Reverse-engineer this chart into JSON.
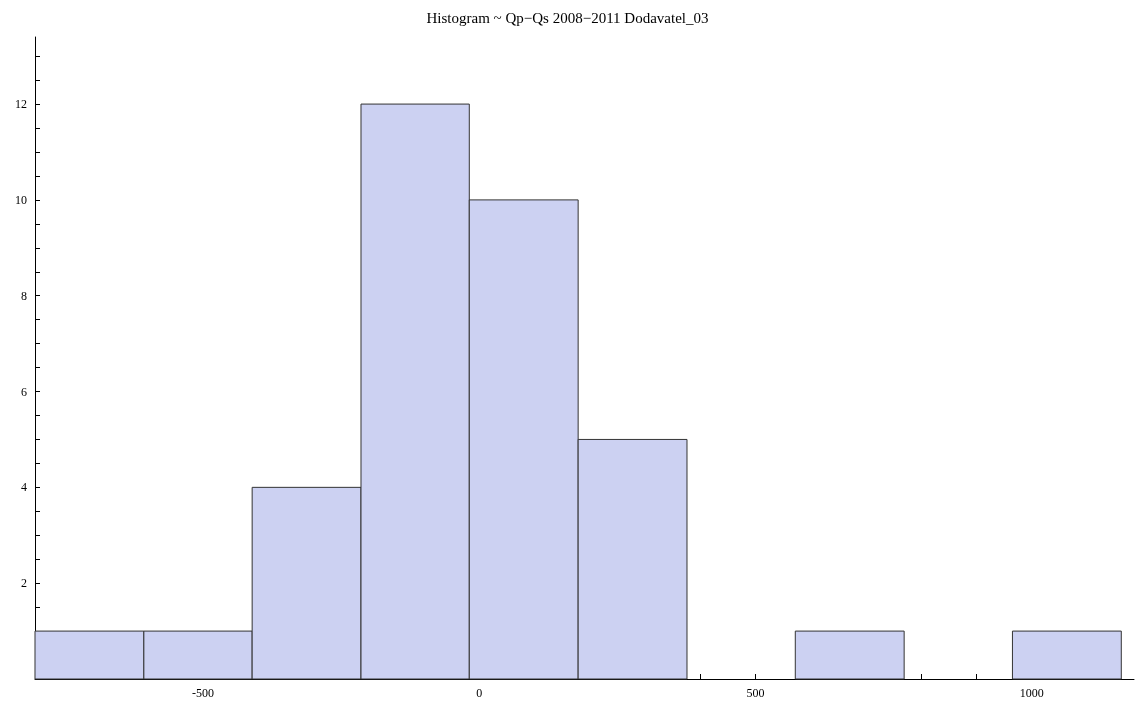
{
  "chart_data": {
    "type": "histogram",
    "title": "Histogram ~ Qp−Qs 2008−2011 Dodavatel_03",
    "bins": [
      -804,
      -607,
      -411,
      -214,
      -18,
      179,
      376,
      572,
      769,
      965,
      1162
    ],
    "values": [
      1,
      1,
      4,
      12,
      10,
      5,
      0,
      1,
      0,
      1
    ],
    "color": "#ccd1f2",
    "xlim": [
      -804,
      1185
    ],
    "xticks": [
      {
        "value": -800,
        "label": null
      },
      {
        "value": -700,
        "label": null
      },
      {
        "value": -600,
        "label": null
      },
      -500,
      {
        "value": -400,
        "label": null
      },
      {
        "value": -300,
        "label": null
      },
      {
        "value": -200,
        "label": null
      },
      {
        "value": -100,
        "label": null
      },
      0,
      {
        "value": 100,
        "label": null
      },
      {
        "value": 200,
        "label": null
      },
      {
        "value": 300,
        "label": null
      },
      {
        "value": 400,
        "label": null
      },
      500,
      {
        "value": 600,
        "label": null
      },
      {
        "value": 700,
        "label": null
      },
      {
        "value": 800,
        "label": null
      },
      {
        "value": 900,
        "label": null
      },
      1000,
      {
        "value": 1100,
        "label": null
      }
    ],
    "ylim": [
      0,
      13.4
    ],
    "yticks": [
      {
        "value": 0.5,
        "label": null
      },
      {
        "value": 1,
        "label": null
      },
      {
        "value": 1.5,
        "label": null
      },
      2,
      {
        "value": 2.5,
        "label": null
      },
      {
        "value": 3,
        "label": null
      },
      {
        "value": 3.5,
        "label": null
      },
      4,
      {
        "value": 4.5,
        "label": null
      },
      {
        "value": 5,
        "label": null
      },
      {
        "value": 5.5,
        "label": null
      },
      6,
      {
        "value": 6.5,
        "label": null
      },
      {
        "value": 7,
        "label": null
      },
      {
        "value": 7.5,
        "label": null
      },
      8,
      {
        "value": 8.5,
        "label": null
      },
      {
        "value": 9,
        "label": null
      },
      {
        "value": 9.5,
        "label": null
      },
      10,
      {
        "value": 10.5,
        "label": null
      },
      {
        "value": 11,
        "label": null
      },
      {
        "value": 11.5,
        "label": null
      },
      12,
      {
        "value": 12.5,
        "label": null
      },
      {
        "value": 13,
        "label": null
      }
    ],
    "grid": false
  }
}
